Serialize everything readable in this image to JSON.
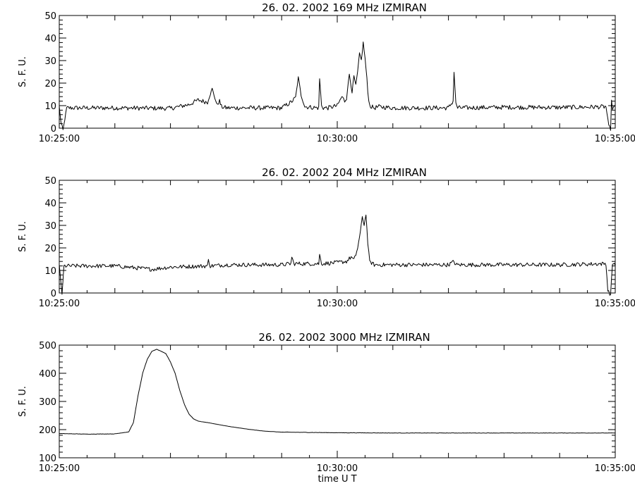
{
  "chart_data": [
    {
      "type": "line",
      "title": "26.  02.  2002    169  MHz    IZMIRAN",
      "ylabel": "S. F. U.",
      "xlabel": "",
      "ylim": [
        0,
        50
      ],
      "xlim": [
        "10:25:00",
        "10:35:00"
      ],
      "yticks": [
        0,
        10,
        20,
        30,
        40,
        50
      ],
      "xticks": [
        "10:25:00",
        "10:30:00",
        "10:35:00"
      ],
      "baseline": 8.8,
      "noise": 1.0,
      "series": [
        {
          "x": [
            "10:25:00",
            "10:25:02",
            "10:25:04",
            "10:25:08",
            "10:26:00",
            "10:27:00",
            "10:27:20",
            "10:27:30",
            "10:27:40",
            "10:27:45",
            "10:27:50",
            "10:27:53",
            "10:27:55",
            "10:28:00",
            "10:29:00",
            "10:29:10",
            "10:29:15",
            "10:29:18",
            "10:29:21",
            "10:29:25",
            "10:29:40",
            "10:29:41",
            "10:29:43",
            "10:29:45",
            "10:29:50",
            "10:30:00",
            "10:30:05",
            "10:30:08",
            "10:30:10",
            "10:30:13",
            "10:30:16",
            "10:30:18",
            "10:30:20",
            "10:30:22",
            "10:30:24",
            "10:30:26",
            "10:30:28",
            "10:30:30",
            "10:30:32",
            "10:30:33",
            "10:30:34",
            "10:30:35",
            "10:30:37",
            "10:30:40",
            "10:30:45",
            "10:31:00",
            "10:32:00",
            "10:32:05",
            "10:32:06",
            "10:32:07",
            "10:32:08",
            "10:32:10",
            "10:33:00",
            "10:34:00",
            "10:34:50",
            "10:34:53",
            "10:34:55",
            "10:34:56",
            "10:34:57",
            "10:35:00"
          ],
          "y": [
            9.6,
            2,
            -1,
            9.0,
            9.0,
            8.8,
            10.5,
            12.5,
            11.5,
            17.5,
            10.5,
            12.0,
            9.5,
            9.0,
            9.0,
            11.5,
            13.5,
            22.5,
            14.5,
            9.5,
            9.0,
            22.0,
            10.0,
            9.0,
            9.0,
            10.0,
            14.0,
            12.0,
            13.5,
            24.0,
            16.0,
            23.0,
            19.0,
            25.0,
            33.0,
            30.0,
            38.0,
            31.0,
            22.0,
            16.0,
            13.0,
            10.0,
            9.5,
            9.0,
            9.5,
            9.0,
            9.0,
            12.0,
            25.0,
            18.0,
            11.0,
            9.0,
            9.3,
            9.2,
            9.5,
            1.0,
            -1,
            12.0,
            9.0,
            9.3
          ]
        }
      ]
    },
    {
      "type": "line",
      "title": "26.  02.  2002    204  MHz    IZMIRAN",
      "ylabel": "S. F. U.",
      "xlabel": "",
      "ylim": [
        0,
        50
      ],
      "xlim": [
        "10:25:00",
        "10:35:00"
      ],
      "yticks": [
        0,
        10,
        20,
        30,
        40,
        50
      ],
      "xticks": [
        "10:25:00",
        "10:30:00",
        "10:35:00"
      ],
      "baseline": 12.0,
      "noise": 0.9,
      "series": [
        {
          "x": [
            "10:25:00",
            "10:25:02",
            "10:25:03",
            "10:25:05",
            "10:25:08",
            "10:26:00",
            "10:26:40",
            "10:27:00",
            "10:27:40",
            "10:27:41",
            "10:27:43",
            "10:28:00",
            "10:29:00",
            "10:29:10",
            "10:29:11",
            "10:29:13",
            "10:29:20",
            "10:29:40",
            "10:29:41",
            "10:29:43",
            "10:30:00",
            "10:30:10",
            "10:30:15",
            "10:30:18",
            "10:30:20",
            "10:30:22",
            "10:30:25",
            "10:30:27",
            "10:30:29",
            "10:30:31",
            "10:30:33",
            "10:30:35",
            "10:30:40",
            "10:31:00",
            "10:32:00",
            "10:32:06",
            "10:32:08",
            "10:33:00",
            "10:34:00",
            "10:34:50",
            "10:34:52",
            "10:34:55",
            "10:34:57",
            "10:35:00"
          ],
          "y": [
            12.5,
            4,
            -1,
            12.0,
            12.0,
            12.0,
            10.5,
            11.5,
            12.0,
            14.5,
            12.0,
            12.5,
            12.5,
            13.0,
            16.0,
            13.0,
            13.0,
            13.0,
            17.0,
            13.0,
            13.5,
            14.0,
            16.0,
            14.5,
            17.0,
            20.0,
            27.0,
            34.0,
            30.0,
            35.0,
            22.0,
            14.0,
            12.5,
            12.5,
            12.5,
            14.0,
            12.5,
            12.5,
            12.5,
            13.0,
            1.0,
            -1,
            13.0,
            13.0
          ]
        }
      ]
    },
    {
      "type": "line",
      "title": "26.  02.  2002    3000  MHz    IZMIRAN",
      "ylabel": "S. F. U.",
      "xlabel": "time   U T",
      "ylim": [
        100,
        500
      ],
      "xlim": [
        "10:25:00",
        "10:35:00"
      ],
      "yticks": [
        100,
        200,
        300,
        400,
        500
      ],
      "xticks": [
        "10:25:00",
        "10:30:00",
        "10:35:00"
      ],
      "baseline": 0,
      "noise": 0.6,
      "series": [
        {
          "x": [
            "10:25:00",
            "10:25:30",
            "10:26:00",
            "10:26:15",
            "10:26:20",
            "10:26:25",
            "10:26:30",
            "10:26:35",
            "10:26:40",
            "10:26:45",
            "10:26:50",
            "10:26:55",
            "10:27:00",
            "10:27:05",
            "10:27:10",
            "10:27:15",
            "10:27:20",
            "10:27:25",
            "10:27:30",
            "10:27:40",
            "10:28:00",
            "10:28:20",
            "10:28:40",
            "10:29:00",
            "10:29:30",
            "10:30:00",
            "10:31:00",
            "10:32:00",
            "10:33:00",
            "10:34:00",
            "10:35:00"
          ],
          "y": [
            186,
            184,
            185,
            192,
            225,
            320,
            400,
            450,
            478,
            485,
            478,
            470,
            440,
            400,
            340,
            290,
            255,
            238,
            230,
            225,
            213,
            203,
            195,
            191,
            190,
            189,
            188,
            188,
            188,
            188,
            188
          ]
        }
      ]
    }
  ]
}
